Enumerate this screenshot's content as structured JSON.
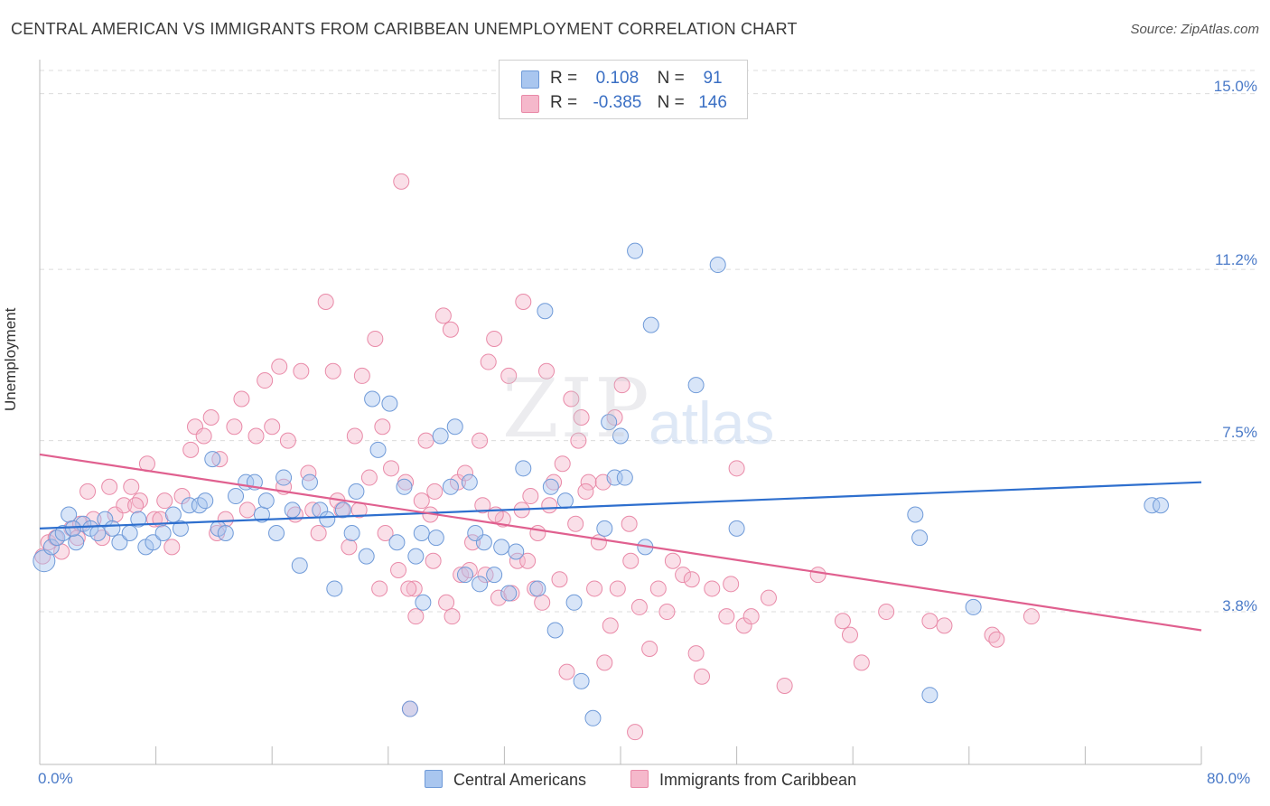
{
  "title": "CENTRAL AMERICAN VS IMMIGRANTS FROM CARIBBEAN UNEMPLOYMENT CORRELATION CHART",
  "source": "Source: ZipAtlas.com",
  "watermark": {
    "zip": "ZIP",
    "atlas": "atlas"
  },
  "legend": {
    "r_label": "R =",
    "n_label": "N =",
    "rows": [
      {
        "r": "0.108",
        "n": "91"
      },
      {
        "r": "-0.385",
        "n": "146"
      }
    ]
  },
  "colors": {
    "blue_fill": "#a9c6ef",
    "blue_stroke": "#6f9ad8",
    "blue_line": "#2e6fce",
    "pink_fill": "#f5b8cb",
    "pink_stroke": "#e98aa8",
    "pink_line": "#e0608f",
    "grid": "#dcdcdc",
    "tick_text": "#4a7ac8"
  },
  "chart_data": {
    "type": "scatter",
    "xlabel": "",
    "ylabel": "Unemployment",
    "xlim": [
      0,
      80
    ],
    "ylim": [
      0.5,
      15.5
    ],
    "x_ticks": [
      "0.0%",
      "80.0%"
    ],
    "y_ticks": [
      {
        "value": 15.0,
        "label": "15.0%"
      },
      {
        "value": 11.2,
        "label": "11.2%"
      },
      {
        "value": 7.5,
        "label": "7.5%"
      },
      {
        "value": 3.8,
        "label": "3.8%"
      }
    ],
    "grid": true,
    "legend_position": "top-center",
    "series": [
      {
        "name": "Central Americans",
        "color": "#6f9ad8",
        "trend": [
          [
            0,
            5.6
          ],
          [
            80,
            6.6
          ]
        ],
        "points": [
          [
            0.3,
            4.9
          ],
          [
            0.8,
            5.2
          ],
          [
            1.2,
            5.4
          ],
          [
            1.6,
            5.5
          ],
          [
            2.0,
            5.9
          ],
          [
            2.5,
            5.3
          ],
          [
            3.0,
            5.7
          ],
          [
            3.5,
            5.6
          ],
          [
            4.0,
            5.5
          ],
          [
            4.5,
            5.8
          ],
          [
            5.0,
            5.6
          ],
          [
            5.5,
            5.3
          ],
          [
            6.2,
            5.5
          ],
          [
            6.8,
            5.8
          ],
          [
            7.3,
            5.2
          ],
          [
            7.8,
            5.3
          ],
          [
            8.5,
            5.5
          ],
          [
            9.2,
            5.9
          ],
          [
            9.7,
            5.6
          ],
          [
            10.3,
            6.1
          ],
          [
            11.0,
            6.1
          ],
          [
            11.4,
            6.2
          ],
          [
            11.9,
            7.1
          ],
          [
            12.3,
            5.6
          ],
          [
            12.8,
            5.5
          ],
          [
            13.5,
            6.3
          ],
          [
            14.2,
            6.6
          ],
          [
            14.8,
            6.6
          ],
          [
            15.3,
            5.9
          ],
          [
            15.6,
            6.2
          ],
          [
            16.3,
            5.5
          ],
          [
            16.8,
            6.7
          ],
          [
            17.4,
            6.0
          ],
          [
            17.9,
            4.8
          ],
          [
            18.6,
            6.6
          ],
          [
            19.3,
            6.0
          ],
          [
            19.8,
            5.8
          ],
          [
            20.3,
            4.3
          ],
          [
            20.9,
            6.0
          ],
          [
            21.5,
            5.5
          ],
          [
            21.8,
            6.4
          ],
          [
            22.5,
            5.0
          ],
          [
            22.9,
            8.4
          ],
          [
            23.3,
            7.3
          ],
          [
            24.1,
            8.3
          ],
          [
            25.1,
            6.5
          ],
          [
            24.6,
            5.3
          ],
          [
            25.9,
            5.0
          ],
          [
            26.3,
            5.5
          ],
          [
            27.3,
            5.4
          ],
          [
            27.6,
            7.6
          ],
          [
            28.3,
            6.5
          ],
          [
            28.6,
            7.8
          ],
          [
            29.6,
            6.6
          ],
          [
            29.3,
            4.6
          ],
          [
            30.3,
            4.4
          ],
          [
            30.6,
            5.3
          ],
          [
            31.3,
            4.6
          ],
          [
            31.8,
            5.2
          ],
          [
            32.3,
            4.2
          ],
          [
            33.3,
            6.9
          ],
          [
            34.3,
            4.3
          ],
          [
            34.8,
            10.3
          ],
          [
            35.2,
            6.5
          ],
          [
            35.5,
            3.4
          ],
          [
            36.2,
            6.2
          ],
          [
            36.8,
            4.0
          ],
          [
            37.3,
            2.3
          ],
          [
            38.1,
            1.5
          ],
          [
            38.9,
            5.6
          ],
          [
            39.2,
            7.9
          ],
          [
            39.6,
            6.7
          ],
          [
            40.0,
            7.6
          ],
          [
            40.3,
            6.7
          ],
          [
            41.0,
            11.6
          ],
          [
            41.7,
            5.2
          ],
          [
            42.1,
            10.0
          ],
          [
            45.2,
            8.7
          ],
          [
            46.7,
            11.3
          ],
          [
            48.0,
            5.6
          ],
          [
            25.5,
            1.7
          ],
          [
            26.4,
            4.0
          ],
          [
            30.0,
            5.5
          ],
          [
            32.8,
            5.1
          ],
          [
            60.3,
            5.9
          ],
          [
            60.6,
            5.4
          ],
          [
            61.3,
            2.0
          ],
          [
            64.3,
            3.9
          ],
          [
            76.6,
            6.1
          ],
          [
            77.2,
            6.1
          ],
          [
            2.3,
            5.6
          ]
        ]
      },
      {
        "name": "Immigrants from Caribbean",
        "color": "#e98aa8",
        "trend": [
          [
            0,
            7.2
          ],
          [
            80,
            3.4
          ]
        ],
        "points": [
          [
            0.2,
            5.0
          ],
          [
            0.6,
            5.3
          ],
          [
            1.1,
            5.4
          ],
          [
            1.5,
            5.1
          ],
          [
            2.2,
            5.6
          ],
          [
            2.8,
            5.7
          ],
          [
            3.3,
            6.4
          ],
          [
            3.7,
            5.8
          ],
          [
            4.3,
            5.4
          ],
          [
            4.8,
            6.5
          ],
          [
            5.2,
            5.9
          ],
          [
            5.8,
            6.1
          ],
          [
            6.3,
            6.5
          ],
          [
            6.9,
            6.2
          ],
          [
            7.4,
            7.0
          ],
          [
            7.9,
            5.8
          ],
          [
            8.6,
            6.2
          ],
          [
            9.1,
            5.2
          ],
          [
            9.8,
            6.3
          ],
          [
            10.4,
            7.3
          ],
          [
            10.7,
            7.8
          ],
          [
            11.3,
            7.6
          ],
          [
            11.8,
            8.0
          ],
          [
            12.4,
            7.1
          ],
          [
            12.8,
            5.8
          ],
          [
            13.4,
            7.8
          ],
          [
            13.9,
            8.4
          ],
          [
            14.3,
            6.0
          ],
          [
            14.9,
            7.6
          ],
          [
            15.5,
            8.8
          ],
          [
            16.0,
            7.8
          ],
          [
            16.5,
            9.1
          ],
          [
            17.1,
            7.5
          ],
          [
            17.6,
            5.9
          ],
          [
            18.0,
            9.0
          ],
          [
            18.5,
            6.8
          ],
          [
            19.2,
            5.5
          ],
          [
            19.7,
            10.5
          ],
          [
            20.2,
            9.0
          ],
          [
            20.8,
            6.0
          ],
          [
            21.3,
            5.2
          ],
          [
            21.7,
            7.6
          ],
          [
            22.2,
            8.9
          ],
          [
            22.7,
            6.7
          ],
          [
            23.1,
            9.7
          ],
          [
            23.6,
            7.8
          ],
          [
            24.2,
            6.9
          ],
          [
            24.7,
            4.7
          ],
          [
            25.2,
            6.6
          ],
          [
            25.8,
            4.3
          ],
          [
            26.3,
            6.2
          ],
          [
            26.6,
            7.5
          ],
          [
            27.2,
            6.4
          ],
          [
            27.8,
            10.2
          ],
          [
            28.3,
            9.9
          ],
          [
            28.8,
            6.6
          ],
          [
            29.3,
            6.8
          ],
          [
            29.8,
            5.3
          ],
          [
            30.3,
            7.5
          ],
          [
            30.9,
            9.2
          ],
          [
            31.3,
            9.7
          ],
          [
            31.9,
            5.8
          ],
          [
            32.3,
            8.9
          ],
          [
            32.9,
            4.9
          ],
          [
            33.3,
            10.5
          ],
          [
            33.8,
            6.3
          ],
          [
            34.3,
            5.5
          ],
          [
            34.9,
            9.0
          ],
          [
            35.4,
            6.6
          ],
          [
            35.8,
            4.5
          ],
          [
            36.3,
            2.5
          ],
          [
            36.6,
            8.4
          ],
          [
            37.3,
            8.0
          ],
          [
            37.8,
            6.6
          ],
          [
            38.2,
            4.3
          ],
          [
            38.9,
            2.7
          ],
          [
            39.3,
            3.5
          ],
          [
            39.6,
            8.0
          ],
          [
            40.1,
            8.7
          ],
          [
            40.6,
            5.7
          ],
          [
            41.0,
            1.2
          ],
          [
            41.3,
            3.9
          ],
          [
            42.0,
            3.0
          ],
          [
            42.6,
            4.3
          ],
          [
            43.2,
            3.8
          ],
          [
            44.3,
            4.6
          ],
          [
            45.2,
            2.9
          ],
          [
            45.6,
            2.4
          ],
          [
            47.3,
            3.7
          ],
          [
            48.0,
            6.9
          ],
          [
            48.5,
            3.5
          ],
          [
            49.0,
            3.7
          ],
          [
            50.2,
            4.1
          ],
          [
            51.3,
            2.2
          ],
          [
            53.6,
            4.6
          ],
          [
            55.3,
            3.6
          ],
          [
            55.8,
            3.3
          ],
          [
            56.6,
            2.7
          ],
          [
            58.3,
            3.8
          ],
          [
            61.3,
            3.6
          ],
          [
            62.3,
            3.5
          ],
          [
            65.6,
            3.3
          ],
          [
            65.9,
            3.2
          ],
          [
            68.3,
            3.7
          ],
          [
            2.6,
            5.4
          ],
          [
            6.6,
            6.1
          ],
          [
            8.3,
            5.8
          ],
          [
            12.2,
            5.5
          ],
          [
            16.8,
            6.5
          ],
          [
            18.8,
            6.0
          ],
          [
            20.5,
            6.2
          ],
          [
            22.0,
            6.0
          ],
          [
            23.8,
            5.5
          ],
          [
            25.4,
            4.3
          ],
          [
            26.9,
            5.9
          ],
          [
            28.0,
            4.0
          ],
          [
            29.0,
            4.6
          ],
          [
            30.7,
            4.6
          ],
          [
            31.6,
            4.1
          ],
          [
            33.6,
            4.9
          ],
          [
            34.6,
            4.0
          ],
          [
            36.0,
            7.0
          ],
          [
            37.1,
            7.5
          ],
          [
            38.5,
            5.3
          ],
          [
            39.8,
            4.3
          ],
          [
            40.7,
            4.9
          ],
          [
            43.6,
            4.9
          ],
          [
            44.9,
            4.5
          ],
          [
            46.3,
            4.3
          ],
          [
            47.6,
            4.4
          ],
          [
            24.9,
            13.1
          ],
          [
            25.5,
            1.7
          ],
          [
            23.4,
            4.3
          ],
          [
            25.9,
            3.7
          ],
          [
            27.1,
            4.9
          ],
          [
            28.4,
            3.7
          ],
          [
            29.6,
            4.7
          ],
          [
            30.5,
            6.1
          ],
          [
            31.4,
            5.9
          ],
          [
            32.5,
            4.2
          ],
          [
            33.2,
            6.0
          ],
          [
            34.1,
            4.3
          ],
          [
            35.1,
            6.1
          ],
          [
            36.9,
            5.7
          ],
          [
            37.6,
            6.4
          ],
          [
            38.8,
            6.6
          ]
        ]
      }
    ]
  },
  "bottom_legend": [
    "Central Americans",
    "Immigrants from Caribbean"
  ]
}
